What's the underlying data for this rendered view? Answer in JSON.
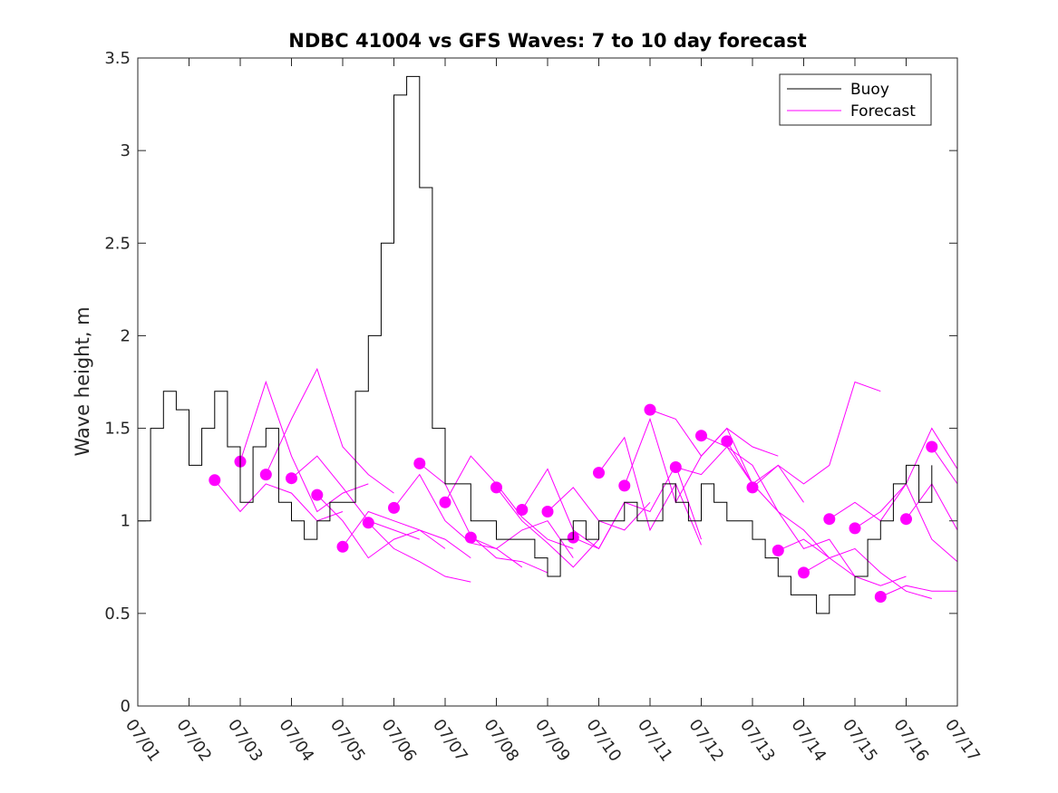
{
  "chart_data": {
    "type": "line",
    "title": "NDBC 41004 vs GFS Waves: 7 to 10 day forecast",
    "xlabel": "",
    "ylabel": "Wave height, m",
    "xlim": [
      "07/01",
      "07/17"
    ],
    "ylim": [
      0,
      3.5
    ],
    "x_tick_labels": [
      "07/01",
      "07/02",
      "07/03",
      "07/04",
      "07/05",
      "07/06",
      "07/07",
      "07/08",
      "07/09",
      "07/10",
      "07/11",
      "07/12",
      "07/13",
      "07/14",
      "07/15",
      "07/16",
      "07/17"
    ],
    "y_tick_labels": [
      "0",
      "0.5",
      "1",
      "1.5",
      "2",
      "2.5",
      "3",
      "3.5"
    ],
    "grid": false,
    "legend_position": "top-right",
    "colors": {
      "buoy": "#000000",
      "forecast": "#ff00ff",
      "axis": "#262626"
    },
    "series": [
      {
        "name": "Buoy",
        "x": [
          "07/01 00:00",
          "07/01 06:00",
          "07/01 12:00",
          "07/01 18:00",
          "07/02 00:00",
          "07/02 06:00",
          "07/02 12:00",
          "07/02 18:00",
          "07/03 00:00",
          "07/03 06:00",
          "07/03 12:00",
          "07/03 18:00",
          "07/04 00:00",
          "07/04 06:00",
          "07/04 12:00",
          "07/04 18:00",
          "07/05 00:00",
          "07/05 06:00",
          "07/05 12:00",
          "07/05 18:00",
          "07/06 00:00",
          "07/06 06:00",
          "07/06 12:00",
          "07/06 18:00",
          "07/07 00:00",
          "07/07 06:00",
          "07/07 12:00",
          "07/07 18:00",
          "07/08 00:00",
          "07/08 06:00",
          "07/08 12:00",
          "07/08 18:00",
          "07/09 00:00",
          "07/09 06:00",
          "07/09 12:00",
          "07/09 18:00",
          "07/10 00:00",
          "07/10 06:00",
          "07/10 12:00",
          "07/10 18:00",
          "07/11 00:00",
          "07/11 06:00",
          "07/11 12:00",
          "07/11 18:00",
          "07/12 00:00",
          "07/12 06:00",
          "07/12 12:00",
          "07/12 18:00",
          "07/13 00:00",
          "07/13 06:00",
          "07/13 12:00",
          "07/13 18:00",
          "07/14 00:00",
          "07/14 06:00",
          "07/14 12:00",
          "07/14 18:00",
          "07/15 00:00",
          "07/15 06:00",
          "07/15 12:00",
          "07/15 18:00",
          "07/16 00:00",
          "07/16 06:00",
          "07/16 12:00"
        ],
        "values": [
          1.0,
          1.5,
          1.7,
          1.6,
          1.3,
          1.5,
          1.7,
          1.4,
          1.1,
          1.4,
          1.5,
          1.1,
          1.0,
          0.9,
          1.0,
          1.1,
          1.1,
          1.7,
          2.0,
          2.5,
          3.3,
          3.4,
          2.8,
          1.5,
          1.2,
          1.2,
          1.0,
          1.0,
          0.9,
          0.9,
          0.9,
          0.8,
          0.7,
          0.9,
          1.0,
          0.9,
          1.0,
          1.0,
          1.1,
          1.0,
          1.0,
          1.2,
          1.1,
          1.0,
          1.2,
          1.1,
          1.0,
          1.0,
          0.9,
          0.8,
          0.7,
          0.6,
          0.6,
          0.5,
          0.6,
          0.6,
          0.7,
          0.9,
          1.0,
          1.2,
          1.3,
          1.1,
          1.3
        ]
      },
      {
        "name": "Forecast",
        "values": [],
        "runs": [
          {
            "x": [
              "07/02 12:00",
              "07/03 00:00",
              "07/03 12:00",
              "07/04 00:00",
              "07/04 12:00",
              "07/05 00:00"
            ],
            "values": [
              1.22,
              1.05,
              1.2,
              1.15,
              1.0,
              1.05
            ]
          },
          {
            "x": [
              "07/03 00:00",
              "07/03 12:00",
              "07/04 00:00",
              "07/04 12:00",
              "07/05 00:00",
              "07/05 12:00"
            ],
            "values": [
              1.32,
              1.75,
              1.35,
              1.05,
              1.15,
              1.2
            ]
          },
          {
            "x": [
              "07/03 12:00",
              "07/04 00:00",
              "07/04 12:00",
              "07/05 00:00",
              "07/05 12:00",
              "07/06 00:00"
            ],
            "values": [
              1.25,
              1.55,
              1.82,
              1.4,
              1.25,
              1.15
            ]
          },
          {
            "x": [
              "07/04 00:00",
              "07/04 12:00",
              "07/05 00:00",
              "07/05 12:00",
              "07/06 00:00",
              "07/06 12:00"
            ],
            "values": [
              1.23,
              1.35,
              1.18,
              1.0,
              0.95,
              0.9
            ]
          },
          {
            "x": [
              "07/04 12:00",
              "07/05 00:00",
              "07/05 12:00",
              "07/06 00:00",
              "07/06 12:00",
              "07/07 00:00"
            ],
            "values": [
              1.14,
              1.0,
              0.8,
              0.9,
              0.95,
              0.85
            ]
          },
          {
            "x": [
              "07/05 00:00",
              "07/05 12:00",
              "07/06 00:00",
              "07/06 12:00",
              "07/07 00:00",
              "07/07 12:00"
            ],
            "values": [
              0.86,
              1.05,
              1.0,
              0.95,
              0.9,
              0.8
            ]
          },
          {
            "x": [
              "07/05 12:00",
              "07/06 00:00",
              "07/06 12:00",
              "07/07 00:00",
              "07/07 12:00"
            ],
            "values": [
              0.99,
              0.85,
              0.78,
              0.7,
              0.67
            ]
          },
          {
            "x": [
              "07/06 00:00",
              "07/06 12:00",
              "07/07 00:00",
              "07/07 12:00",
              "07/08 00:00",
              "07/08 12:00"
            ],
            "values": [
              1.07,
              1.25,
              1.0,
              0.88,
              0.85,
              0.75
            ]
          },
          {
            "x": [
              "07/06 12:00",
              "07/07 00:00",
              "07/07 12:00",
              "07/08 00:00",
              "07/08 12:00",
              "07/09 00:00"
            ],
            "values": [
              1.31,
              1.2,
              0.92,
              0.8,
              0.78,
              0.72
            ]
          },
          {
            "x": [
              "07/07 00:00",
              "07/07 12:00",
              "07/08 00:00",
              "07/08 12:00",
              "07/09 00:00",
              "07/09 12:00"
            ],
            "values": [
              1.1,
              1.35,
              1.2,
              1.02,
              0.9,
              0.85
            ]
          },
          {
            "x": [
              "07/07 12:00",
              "07/08 00:00",
              "07/08 12:00",
              "07/09 00:00",
              "07/09 12:00"
            ],
            "values": [
              0.91,
              0.85,
              0.95,
              1.0,
              0.8
            ]
          },
          {
            "x": [
              "07/08 00:00",
              "07/08 12:00",
              "07/09 00:00",
              "07/09 12:00",
              "07/10 00:00"
            ],
            "values": [
              1.18,
              1.0,
              0.88,
              0.75,
              0.9
            ]
          },
          {
            "x": [
              "07/08 12:00",
              "07/09 00:00",
              "07/09 12:00",
              "07/10 00:00",
              "07/10 12:00"
            ],
            "values": [
              1.06,
              1.28,
              0.95,
              0.85,
              1.1
            ]
          },
          {
            "x": [
              "07/09 00:00",
              "07/09 12:00",
              "07/10 00:00",
              "07/10 12:00",
              "07/11 00:00"
            ],
            "values": [
              1.05,
              1.18,
              1.0,
              0.95,
              1.1
            ]
          },
          {
            "x": [
              "07/09 12:00",
              "07/10 00:00",
              "07/10 12:00",
              "07/11 00:00",
              "07/11 12:00",
              "07/12 00:00"
            ],
            "values": [
              0.91,
              0.85,
              1.1,
              1.05,
              1.3,
              0.9
            ]
          },
          {
            "x": [
              "07/10 00:00",
              "07/10 12:00",
              "07/11 00:00",
              "07/11 12:00",
              "07/12 00:00"
            ],
            "values": [
              1.26,
              1.45,
              0.95,
              1.2,
              0.87
            ]
          },
          {
            "x": [
              "07/10 12:00",
              "07/11 00:00",
              "07/11 12:00",
              "07/12 00:00",
              "07/12 12:00",
              "07/13 00:00"
            ],
            "values": [
              1.19,
              1.55,
              1.1,
              1.35,
              1.5,
              1.2
            ]
          },
          {
            "x": [
              "07/11 00:00",
              "07/11 12:00",
              "07/12 00:00",
              "07/12 12:00",
              "07/13 00:00",
              "07/13 12:00"
            ],
            "values": [
              1.6,
              1.55,
              1.35,
              1.5,
              1.4,
              1.35
            ]
          },
          {
            "x": [
              "07/11 12:00",
              "07/12 00:00",
              "07/12 12:00",
              "07/13 00:00",
              "07/13 12:00",
              "07/14 00:00"
            ],
            "values": [
              1.29,
              1.25,
              1.4,
              1.2,
              1.3,
              1.1
            ]
          },
          {
            "x": [
              "07/12 00:00",
              "07/12 12:00",
              "07/13 00:00",
              "07/13 12:00",
              "07/14 00:00",
              "07/14 12:00"
            ],
            "values": [
              1.46,
              1.4,
              1.3,
              1.05,
              0.95,
              0.8
            ]
          },
          {
            "x": [
              "07/12 12:00",
              "07/13 00:00",
              "07/13 12:00",
              "07/14 00:00",
              "07/14 12:00",
              "07/15 00:00"
            ],
            "values": [
              1.43,
              1.2,
              1.05,
              0.85,
              0.9,
              0.7
            ]
          },
          {
            "x": [
              "07/13 00:00",
              "07/13 12:00",
              "07/14 00:00",
              "07/14 12:00",
              "07/15 00:00",
              "07/15 12:00"
            ],
            "values": [
              1.18,
              1.3,
              1.2,
              1.3,
              1.75,
              1.7
            ]
          },
          {
            "x": [
              "07/13 12:00",
              "07/14 00:00",
              "07/14 12:00",
              "07/15 00:00",
              "07/15 12:00",
              "07/16 00:00"
            ],
            "values": [
              0.84,
              0.9,
              0.8,
              0.7,
              0.65,
              0.7
            ]
          },
          {
            "x": [
              "07/14 00:00",
              "07/14 12:00",
              "07/15 00:00",
              "07/15 12:00",
              "07/16 00:00",
              "07/16 12:00"
            ],
            "values": [
              0.72,
              0.8,
              0.85,
              0.72,
              0.62,
              0.58
            ]
          },
          {
            "x": [
              "07/14 12:00",
              "07/15 00:00",
              "07/15 12:00",
              "07/16 00:00",
              "07/16 12:00",
              "07/17 00:00"
            ],
            "values": [
              1.01,
              1.1,
              1.0,
              1.2,
              0.9,
              0.78
            ]
          },
          {
            "x": [
              "07/15 00:00",
              "07/15 12:00",
              "07/16 00:00",
              "07/16 12:00",
              "07/17 00:00"
            ],
            "values": [
              0.96,
              1.05,
              1.2,
              1.5,
              1.28
            ]
          },
          {
            "x": [
              "07/15 12:00",
              "07/16 00:00",
              "07/16 12:00",
              "07/17 00:00"
            ],
            "values": [
              0.59,
              0.65,
              0.62,
              0.62
            ]
          },
          {
            "x": [
              "07/16 00:00",
              "07/16 12:00",
              "07/17 00:00"
            ],
            "values": [
              1.01,
              1.2,
              0.95
            ]
          },
          {
            "x": [
              "07/16 12:00",
              "07/17 00:00"
            ],
            "values": [
              1.4,
              1.2
            ]
          }
        ]
      }
    ]
  }
}
